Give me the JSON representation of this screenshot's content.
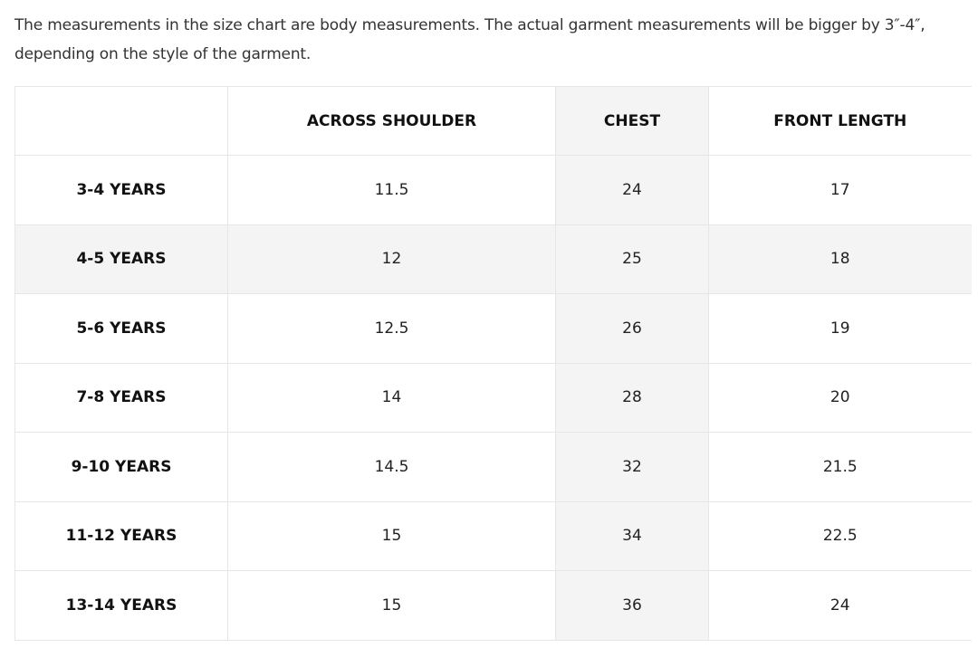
{
  "intro": "The measurements in the size chart are body measurements. The actual garment measurements will be bigger by 3″-4″, depending on the style of the garment.",
  "table": {
    "header": [
      "ACROSS SHOULDER",
      "CHEST",
      "FRONT LENGTH"
    ],
    "rows": [
      [
        "3-4 YEARS",
        "11.5",
        "24",
        "17"
      ],
      [
        "4-5 YEARS",
        "12",
        "25",
        "18"
      ],
      [
        "5-6 YEARS",
        "12.5",
        "26",
        "19"
      ],
      [
        "7-8 YEARS",
        "14",
        "28",
        "20"
      ],
      [
        "9-10 YEARS",
        "14.5",
        "32",
        "21.5"
      ],
      [
        "11-12 YEARS",
        "15",
        "34",
        "22.5"
      ],
      [
        "13-14 YEARS",
        "15",
        "36",
        "24"
      ]
    ]
  }
}
